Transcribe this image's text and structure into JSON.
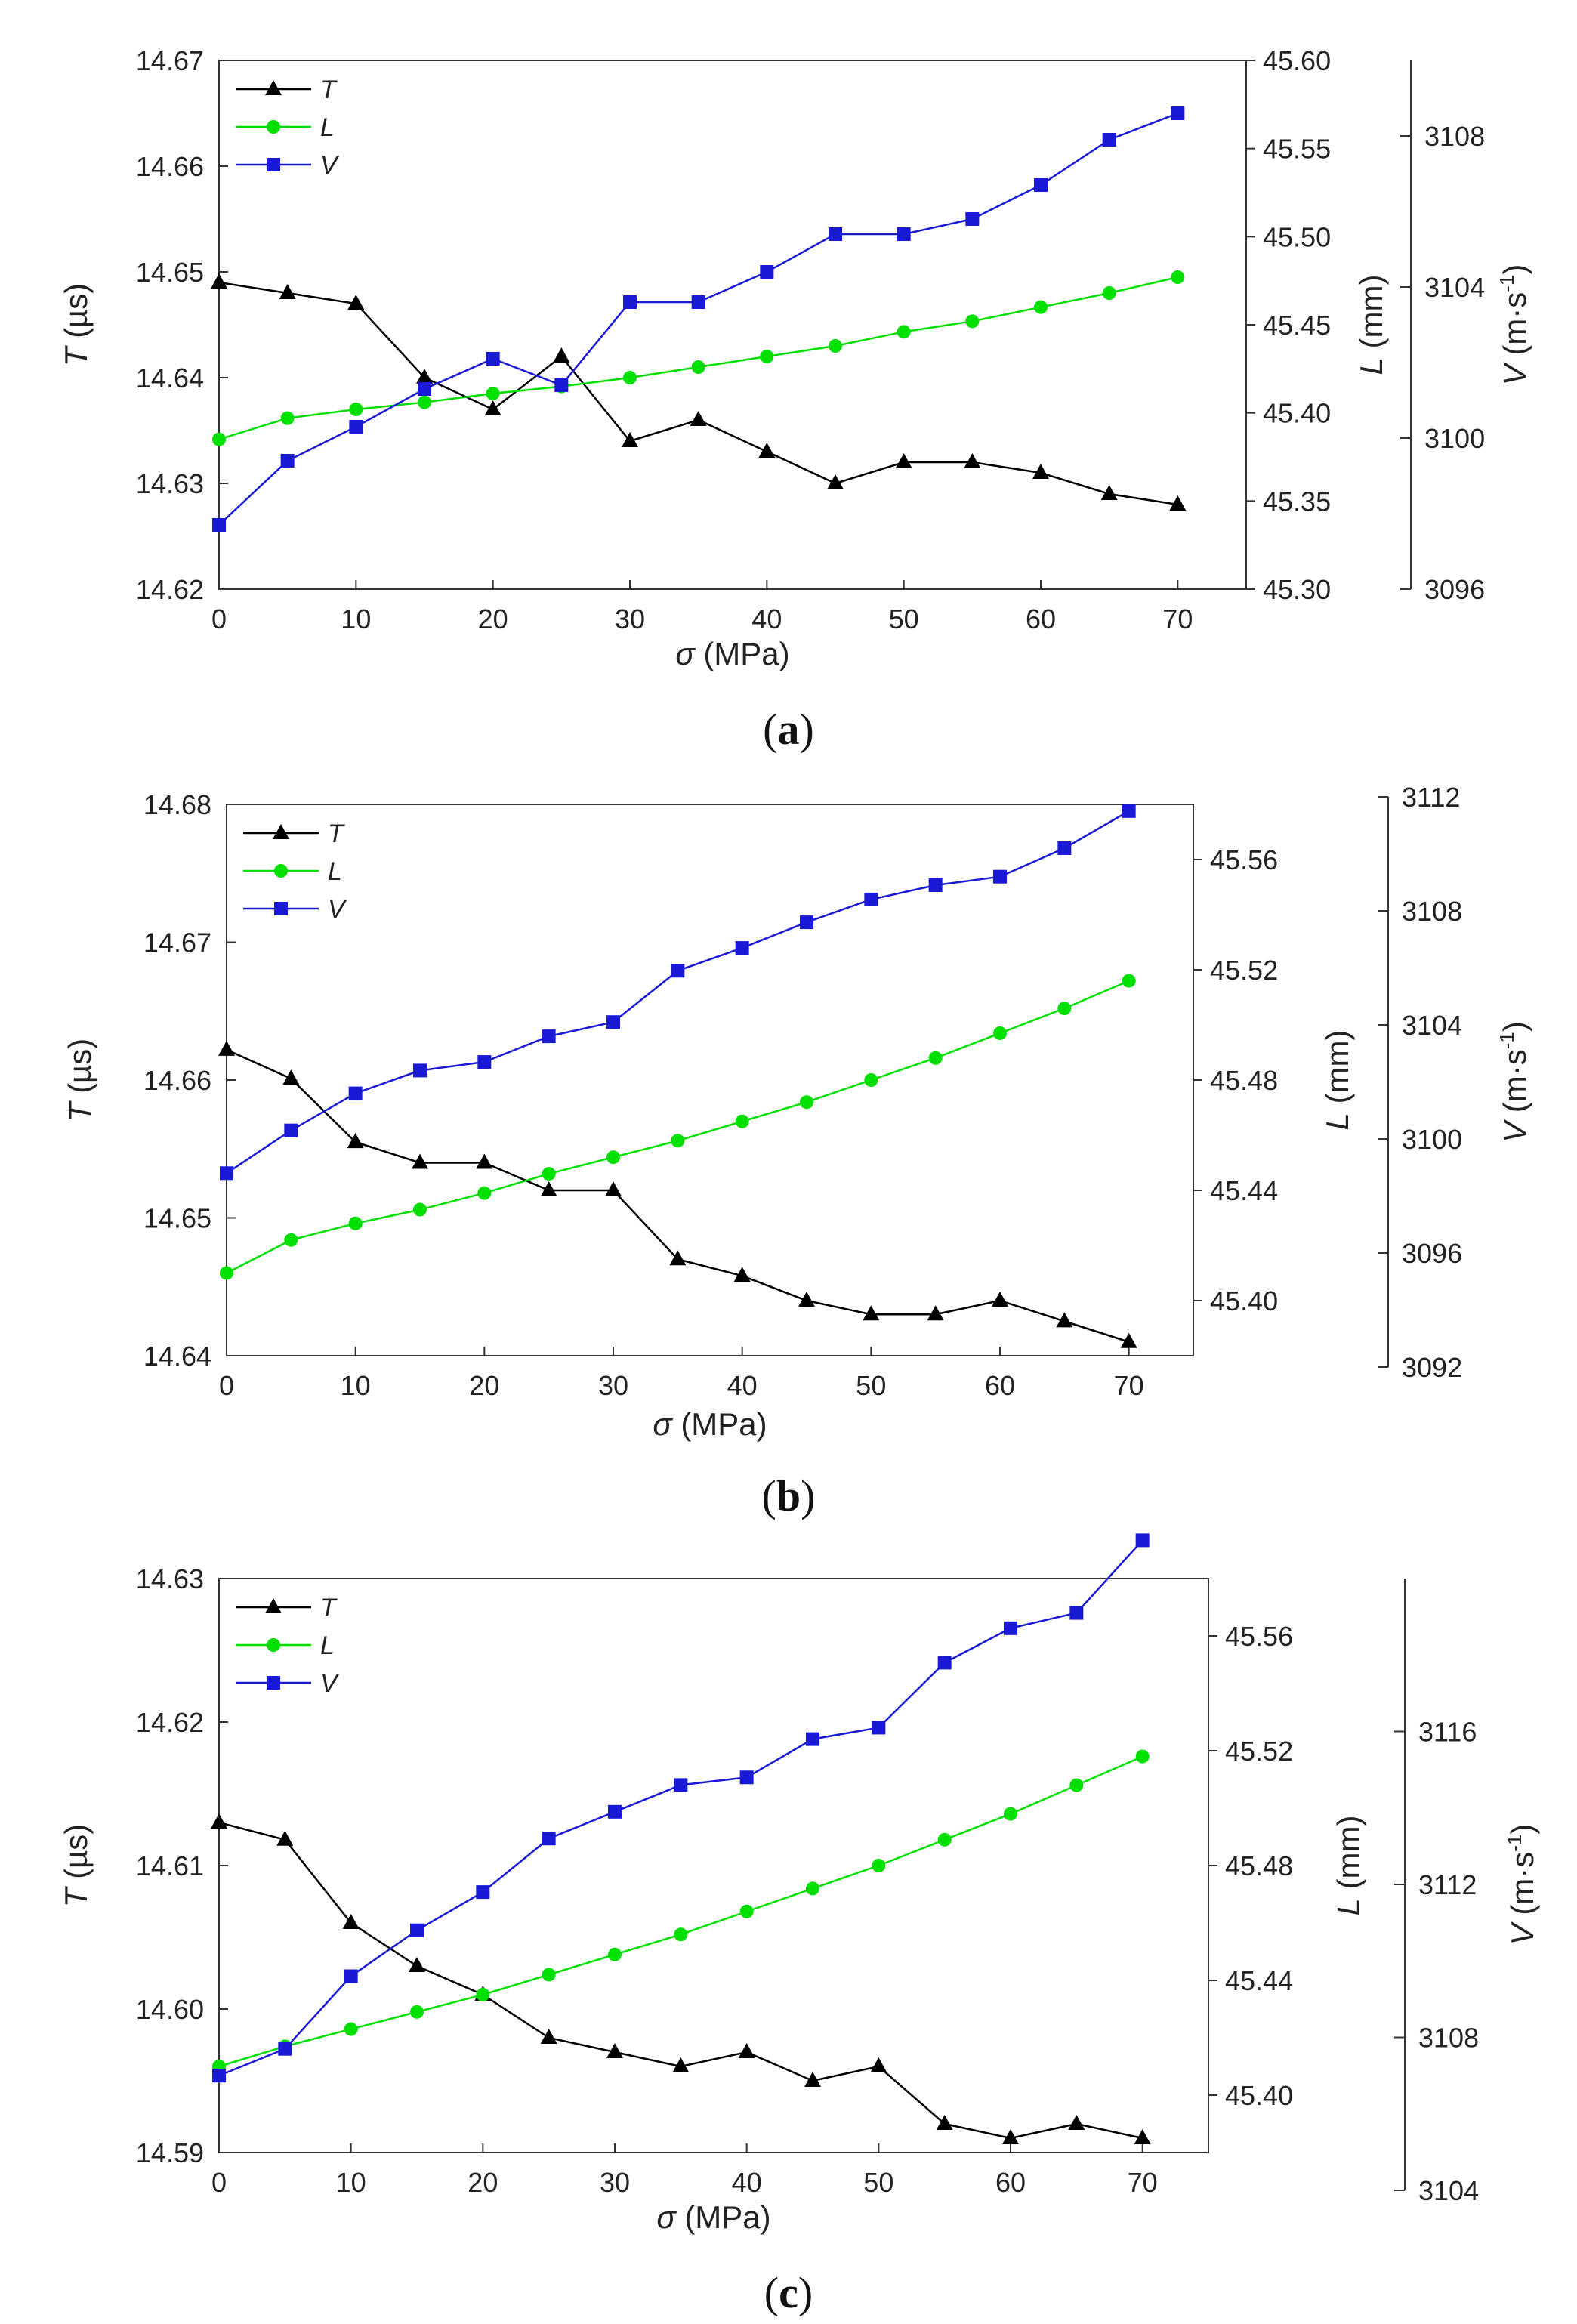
{
  "figure": {
    "colors": {
      "T": "#000000",
      "L": "#00e000",
      "V": "#1a1ad6"
    },
    "legend": [
      "T",
      "L",
      "V"
    ]
  },
  "chart_data": [
    {
      "type": "line",
      "panel": "a",
      "caption_letter": "a",
      "xlabel_symbol": "σ",
      "xlabel_unit": "(MPa)",
      "x": [
        0,
        5,
        10,
        15,
        20,
        25,
        30,
        35,
        40,
        45,
        50,
        55,
        60,
        65,
        70
      ],
      "xlim": [
        0,
        75
      ],
      "xticks": [
        "0",
        "10",
        "20",
        "30",
        "40",
        "50",
        "60",
        "70"
      ],
      "xticks_values": [
        0,
        10,
        20,
        30,
        40,
        50,
        60,
        70
      ],
      "axes": {
        "T": {
          "label_symbol": "T",
          "label_unit": "(µs)",
          "lim": [
            14.62,
            14.67
          ],
          "ticks": [
            "14.62",
            "14.63",
            "14.64",
            "14.65",
            "14.66",
            "14.67"
          ],
          "ticks_values": [
            14.62,
            14.63,
            14.64,
            14.65,
            14.66,
            14.67
          ]
        },
        "L": {
          "label_symbol": "L",
          "label_unit": "(mm)",
          "lim": [
            45.3,
            45.6
          ],
          "ticks": [
            "45.30",
            "45.35",
            "45.40",
            "45.45",
            "45.50",
            "45.55",
            "45.60"
          ],
          "ticks_values": [
            45.3,
            45.35,
            45.4,
            45.45,
            45.5,
            45.55,
            45.6
          ]
        },
        "V": {
          "label_symbol": "V",
          "label_unit": "(m·s",
          "label_sup": "-1",
          "label_close": ")",
          "lim": [
            3096,
            3110
          ],
          "ticks": [
            "3096",
            "3100",
            "3104",
            "3108"
          ],
          "ticks_values": [
            3096,
            3100,
            3104,
            3108
          ]
        }
      },
      "series": [
        {
          "name": "T",
          "axis": "T",
          "marker": "triangle",
          "values": [
            14.649,
            14.648,
            14.647,
            14.64,
            14.637,
            14.642,
            14.634,
            14.636,
            14.633,
            14.63,
            14.632,
            14.632,
            14.631,
            14.629,
            14.628
          ]
        },
        {
          "name": "L",
          "axis": "L",
          "marker": "circle",
          "values": [
            45.385,
            45.397,
            45.402,
            45.406,
            45.411,
            45.415,
            45.42,
            45.426,
            45.432,
            45.438,
            45.446,
            45.452,
            45.46,
            45.468,
            45.477
          ]
        },
        {
          "name": "V",
          "axis": "V",
          "marker": "square",
          "values": [
            3097.7,
            3099.4,
            3100.3,
            3101.3,
            3102.1,
            3101.4,
            3103.6,
            3103.6,
            3104.4,
            3105.4,
            3105.4,
            3105.8,
            3106.7,
            3107.9,
            3108.6
          ]
        }
      ]
    },
    {
      "type": "line",
      "panel": "b",
      "caption_letter": "b",
      "xlabel_symbol": "σ",
      "xlabel_unit": "(MPa)",
      "x": [
        0,
        5,
        10,
        15,
        20,
        25,
        30,
        35,
        40,
        45,
        50,
        55,
        60,
        65,
        70
      ],
      "xlim": [
        0,
        75
      ],
      "xticks": [
        "0",
        "10",
        "20",
        "30",
        "40",
        "50",
        "60",
        "70"
      ],
      "xticks_values": [
        0,
        10,
        20,
        30,
        40,
        50,
        60,
        70
      ],
      "axes": {
        "T": {
          "label_symbol": "T",
          "label_unit": "(µs)",
          "lim": [
            14.64,
            14.68
          ],
          "ticks": [
            "14.64",
            "14.65",
            "14.66",
            "14.67",
            "14.68"
          ],
          "ticks_values": [
            14.64,
            14.65,
            14.66,
            14.67,
            14.68
          ]
        },
        "L": {
          "label_symbol": "L",
          "label_unit": "(mm)",
          "lim": [
            45.38,
            45.58
          ],
          "ticks": [
            "45.40",
            "45.44",
            "45.48",
            "45.52",
            "45.56"
          ],
          "ticks_values": [
            45.4,
            45.44,
            45.48,
            45.52,
            45.56
          ]
        },
        "V": {
          "label_symbol": "V",
          "label_unit": "(m·s",
          "label_sup": "-1",
          "label_close": ")",
          "lim": [
            3092,
            3112
          ],
          "ticks": [
            "3092",
            "3096",
            "3100",
            "3104",
            "3108",
            "3112"
          ],
          "ticks_values": [
            3092,
            3096,
            3100,
            3104,
            3108,
            3112
          ]
        }
      },
      "series": [
        {
          "name": "T",
          "axis": "T",
          "marker": "triangle",
          "values": [
            14.6622,
            14.6601,
            14.6555,
            14.654,
            14.654,
            14.652,
            14.652,
            14.647,
            14.6458,
            14.644,
            14.643,
            14.643,
            14.644,
            14.6425,
            14.641
          ]
        },
        {
          "name": "L",
          "axis": "L",
          "marker": "circle",
          "values": [
            45.41,
            45.422,
            45.428,
            45.433,
            45.439,
            45.446,
            45.452,
            45.458,
            45.465,
            45.472,
            45.48,
            45.488,
            45.497,
            45.506,
            45.516
          ]
        },
        {
          "name": "V",
          "axis": "V",
          "marker": "square",
          "values": [
            3098.8,
            3100.3,
            3101.6,
            3102.4,
            3102.7,
            3103.6,
            3104.1,
            3105.9,
            3106.7,
            3107.6,
            3108.4,
            3108.9,
            3109.2,
            3110.2,
            3111.5
          ]
        }
      ]
    },
    {
      "type": "line",
      "panel": "c",
      "caption_letter": "c",
      "xlabel_symbol": "σ",
      "xlabel_unit": "(MPa)",
      "x": [
        0,
        5,
        10,
        15,
        20,
        25,
        30,
        35,
        40,
        45,
        50,
        55,
        60,
        65,
        70
      ],
      "xlim": [
        0,
        75
      ],
      "xticks": [
        "0",
        "10",
        "20",
        "30",
        "40",
        "50",
        "60",
        "70"
      ],
      "xticks_values": [
        0,
        10,
        20,
        30,
        40,
        50,
        60,
        70
      ],
      "axes": {
        "T": {
          "label_symbol": "T",
          "label_unit": "(µs)",
          "lim": [
            14.59,
            14.63
          ],
          "ticks": [
            "14.59",
            "14.60",
            "14.61",
            "14.62",
            "14.63"
          ],
          "ticks_values": [
            14.59,
            14.6,
            14.61,
            14.62,
            14.63
          ]
        },
        "L": {
          "label_symbol": "L",
          "label_unit": "(mm)",
          "lim": [
            45.38,
            45.58
          ],
          "ticks": [
            "45.40",
            "45.44",
            "45.48",
            "45.52",
            "45.56"
          ],
          "ticks_values": [
            45.4,
            45.44,
            45.48,
            45.52,
            45.56
          ]
        },
        "V": {
          "label_symbol": "V",
          "label_unit": "(m·s",
          "label_sup": "-1",
          "label_close": ")",
          "lim": [
            3104,
            3120
          ],
          "ticks": [
            "3104",
            "3108",
            "3112",
            "3116"
          ],
          "ticks_values": [
            3104,
            3108,
            3112,
            3116
          ]
        }
      },
      "series": [
        {
          "name": "T",
          "axis": "T",
          "marker": "triangle",
          "values": [
            14.613,
            14.6118,
            14.606,
            14.603,
            14.601,
            14.598,
            14.597,
            14.596,
            14.597,
            14.595,
            14.596,
            14.592,
            14.591,
            14.592,
            14.591
          ]
        },
        {
          "name": "L",
          "axis": "L",
          "marker": "circle",
          "values": [
            45.41,
            45.417,
            45.423,
            45.429,
            45.435,
            45.442,
            45.449,
            45.456,
            45.464,
            45.472,
            45.48,
            45.489,
            45.498,
            45.508,
            45.518
          ]
        },
        {
          "name": "V",
          "axis": "V",
          "marker": "square",
          "values": [
            3107.0,
            3107.7,
            3109.6,
            3110.8,
            3111.8,
            3113.2,
            3113.9,
            3114.6,
            3114.8,
            3115.8,
            3116.1,
            3117.8,
            3118.7,
            3119.1,
            3121.0
          ]
        }
      ]
    }
  ]
}
